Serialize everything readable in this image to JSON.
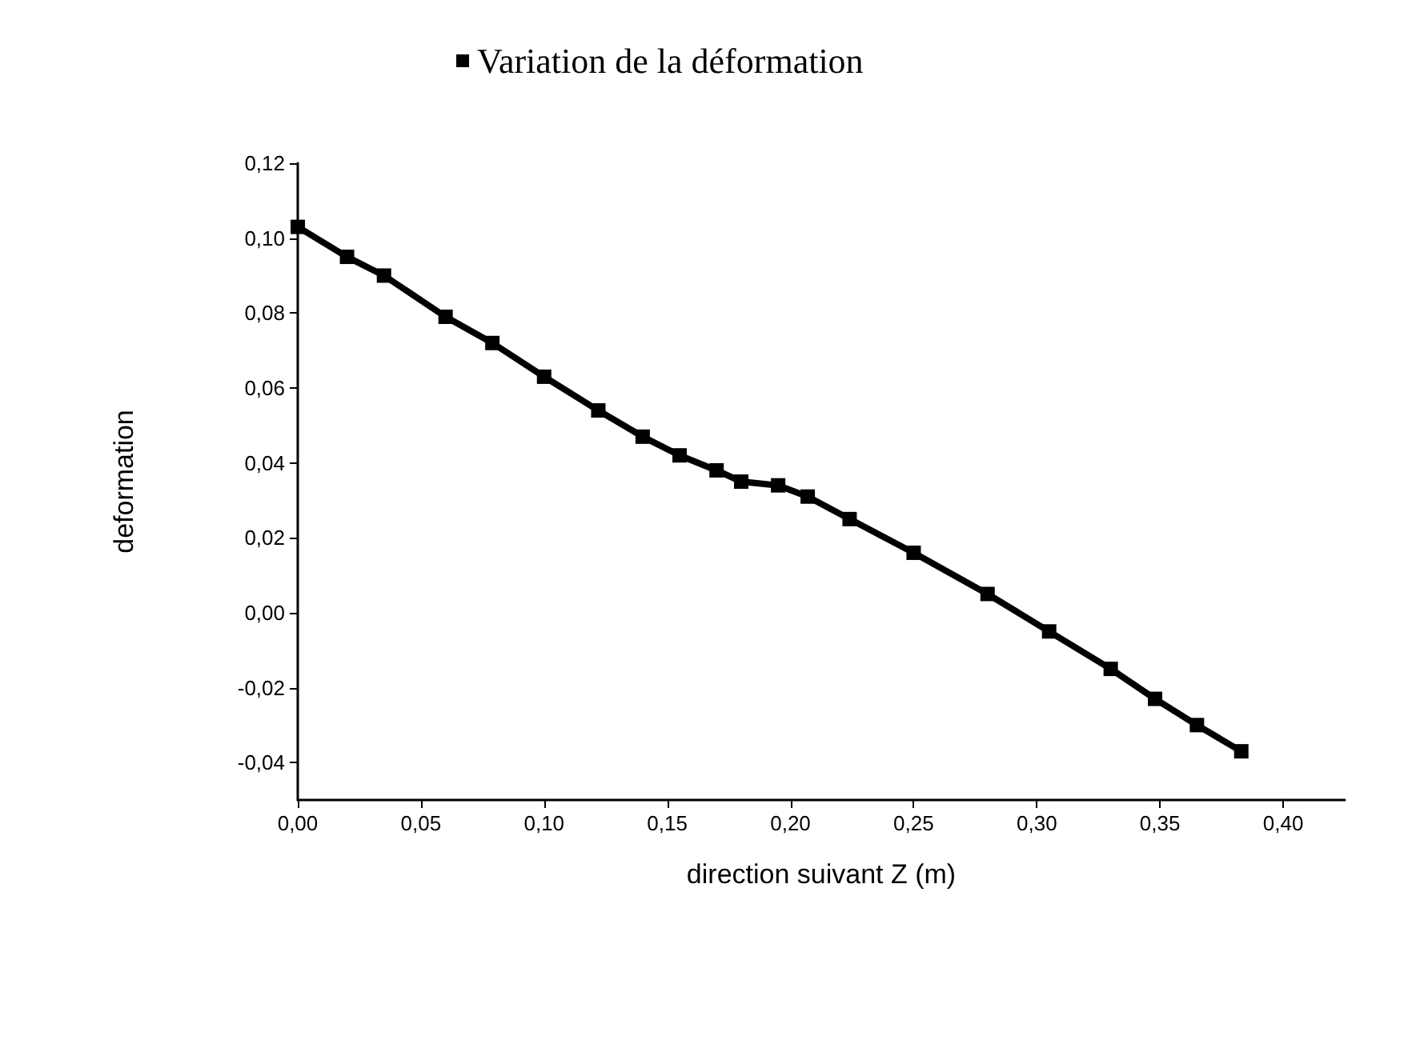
{
  "chart_data": {
    "type": "line",
    "xlabel": "direction suivant Z (m)",
    "ylabel": "deformation",
    "legend": "top",
    "marker": "square",
    "xlim": [
      0,
      0.425
    ],
    "ylim": [
      -0.05,
      0.12
    ],
    "xticks": [
      {
        "value": 0,
        "label": "0,00"
      },
      {
        "value": 0.05,
        "label": "0,05"
      },
      {
        "value": 0.1,
        "label": "0,10"
      },
      {
        "value": 0.15,
        "label": "0,15"
      },
      {
        "value": 0.2,
        "label": "0,20"
      },
      {
        "value": 0.25,
        "label": "0,25"
      },
      {
        "value": 0.3,
        "label": "0,30"
      },
      {
        "value": 0.35,
        "label": "0,35"
      },
      {
        "value": 0.4,
        "label": "0,40"
      }
    ],
    "yticks": [
      {
        "value": -0.04,
        "label": "-0,04"
      },
      {
        "value": -0.02,
        "label": "-0,02"
      },
      {
        "value": 0,
        "label": "0,00"
      },
      {
        "value": 0.02,
        "label": "0,02"
      },
      {
        "value": 0.04,
        "label": "0,04"
      },
      {
        "value": 0.06,
        "label": "0,06"
      },
      {
        "value": 0.08,
        "label": "0,08"
      },
      {
        "value": 0.1,
        "label": "0,10"
      },
      {
        "value": 0.12,
        "label": "0,12"
      }
    ],
    "x": [
      0,
      0.02,
      0.035,
      0.06,
      0.079,
      0.1,
      0.122,
      0.14,
      0.155,
      0.17,
      0.18,
      0.195,
      0.207,
      0.224,
      0.25,
      0.28,
      0.305,
      0.33,
      0.348,
      0.365,
      0.383
    ],
    "series": [
      {
        "name": "Variation de la déformation",
        "color": "#000000",
        "values": [
          0.103,
          0.095,
          0.09,
          0.079,
          0.072,
          0.063,
          0.054,
          0.047,
          0.042,
          0.038,
          0.035,
          0.034,
          0.031,
          0.025,
          0.016,
          0.005,
          -0.005,
          -0.015,
          -0.023,
          -0.03,
          -0.037
        ]
      }
    ]
  }
}
